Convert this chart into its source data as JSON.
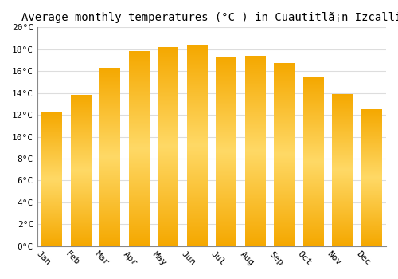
{
  "title": "Average monthly temperatures (°C ) in Cuautitlã¡n Izcalli",
  "months": [
    "Jan",
    "Feb",
    "Mar",
    "Apr",
    "May",
    "Jun",
    "Jul",
    "Aug",
    "Sep",
    "Oct",
    "Nov",
    "Dec"
  ],
  "values": [
    12.2,
    13.8,
    16.3,
    17.8,
    18.2,
    18.3,
    17.3,
    17.4,
    16.7,
    15.4,
    13.9,
    12.5
  ],
  "bar_color_bottom": "#F5A800",
  "bar_color_mid": "#FFD966",
  "bar_color_top": "#F5A800",
  "ylim": [
    0,
    20
  ],
  "yticks": [
    0,
    2,
    4,
    6,
    8,
    10,
    12,
    14,
    16,
    18,
    20
  ],
  "ytick_labels": [
    "0°C",
    "2°C",
    "4°C",
    "6°C",
    "8°C",
    "10°C",
    "12°C",
    "14°C",
    "16°C",
    "18°C",
    "20°C"
  ],
  "background_color": "#FFFFFF",
  "grid_color": "#DDDDDD",
  "title_fontsize": 10,
  "tick_fontsize": 8,
  "bar_width": 0.7,
  "xlabel_rotation": -45
}
